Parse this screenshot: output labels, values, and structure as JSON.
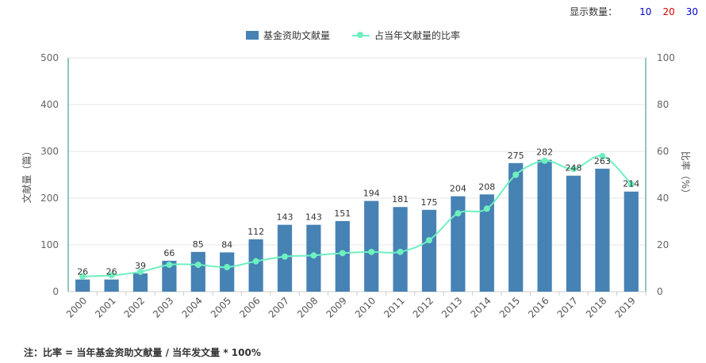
{
  "controls": {
    "label": "显示数量：",
    "options": [
      {
        "text": "10",
        "color": "#0000cc"
      },
      {
        "text": "20",
        "color": "#dd0000"
      },
      {
        "text": "30",
        "color": "#0000cc"
      }
    ]
  },
  "note": "注：比率 = 当年基金资助文献量 / 当年发文量 * 100%",
  "colors": {
    "bar": "#4682b4",
    "line": "#6ef0c0",
    "axis": "#2a8a8a",
    "grid": "#e6e6e6"
  },
  "chart_data": {
    "type": "bar",
    "categories": [
      "2000",
      "2001",
      "2002",
      "2003",
      "2004",
      "2005",
      "2006",
      "2007",
      "2008",
      "2009",
      "2010",
      "2011",
      "2012",
      "2013",
      "2014",
      "2015",
      "2016",
      "2017",
      "2018",
      "2019"
    ],
    "series": [
      {
        "name": "基金资助文献量",
        "type": "bar",
        "axis": "left",
        "values": [
          26,
          26,
          39,
          66,
          85,
          84,
          112,
          143,
          143,
          151,
          194,
          181,
          175,
          204,
          208,
          275,
          282,
          248,
          263,
          214
        ]
      },
      {
        "name": "占当年文献量的比率",
        "type": "line",
        "axis": "right",
        "values": [
          6.5,
          7,
          8.5,
          11.5,
          11.5,
          10.5,
          13,
          15,
          15.5,
          16.5,
          17,
          17,
          22,
          33.5,
          35.5,
          50,
          56,
          52.5,
          58,
          46
        ]
      }
    ],
    "ylabel": "文献量（篇）",
    "y2label": "比率（%）",
    "ylim": [
      0,
      500
    ],
    "yticks": [
      0,
      100,
      200,
      300,
      400,
      500
    ],
    "y2lim": [
      0,
      100
    ],
    "y2ticks": [
      0,
      20,
      40,
      60,
      80,
      100
    ],
    "grid": true,
    "legend": "top-center"
  }
}
